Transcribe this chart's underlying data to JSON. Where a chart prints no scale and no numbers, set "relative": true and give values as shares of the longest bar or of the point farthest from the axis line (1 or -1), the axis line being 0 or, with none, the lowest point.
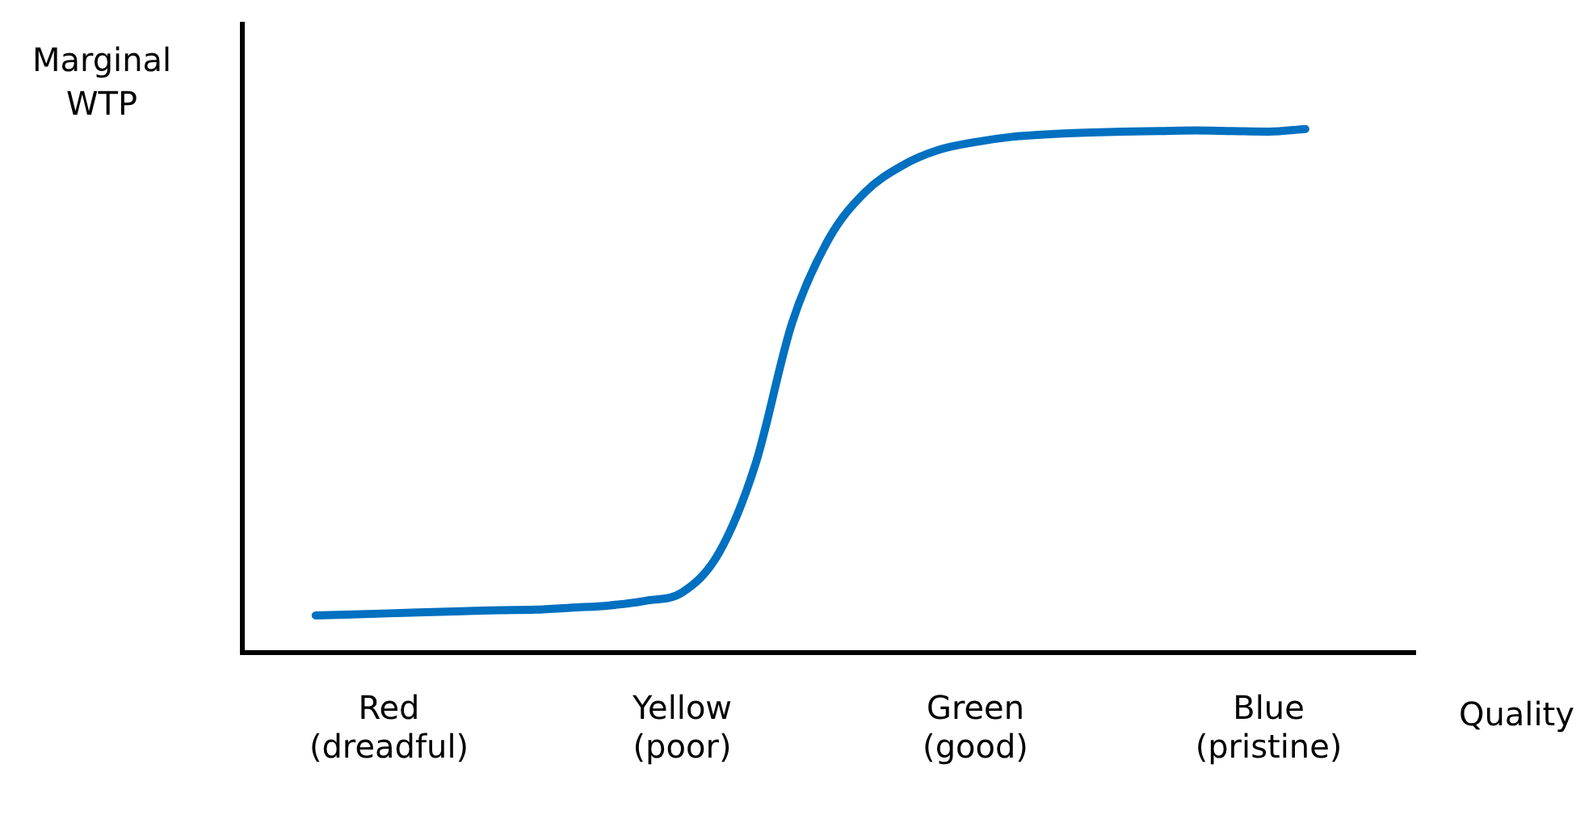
{
  "chart_data": {
    "type": "line",
    "relative": true,
    "ylabel": "Marginal\nWTP",
    "xlabel": "Quality",
    "color": "#0070c0",
    "legend": false,
    "grid": false,
    "marker": "none",
    "categories": [
      null,
      null,
      null,
      null,
      "Red\n(dreadful)",
      null,
      null,
      null,
      null,
      null,
      null,
      null,
      "Yellow\n(poor)",
      null,
      null,
      null,
      null,
      null,
      null,
      null,
      "Green\n(good)",
      null,
      null,
      null,
      null,
      null,
      null,
      null,
      "Blue\n(pristine)",
      null,
      null,
      null,
      null
    ],
    "values": [
      null,
      null,
      0.071,
      0.073,
      0.075,
      0.077,
      0.079,
      0.081,
      0.082,
      0.086,
      0.09,
      0.099,
      0.115,
      0.19,
      0.36,
      0.63,
      0.79,
      0.88,
      0.93,
      0.96,
      0.975,
      0.985,
      0.99,
      0.993,
      0.995,
      0.996,
      0.997,
      0.996,
      0.995,
      1,
      null,
      null,
      null
    ]
  }
}
